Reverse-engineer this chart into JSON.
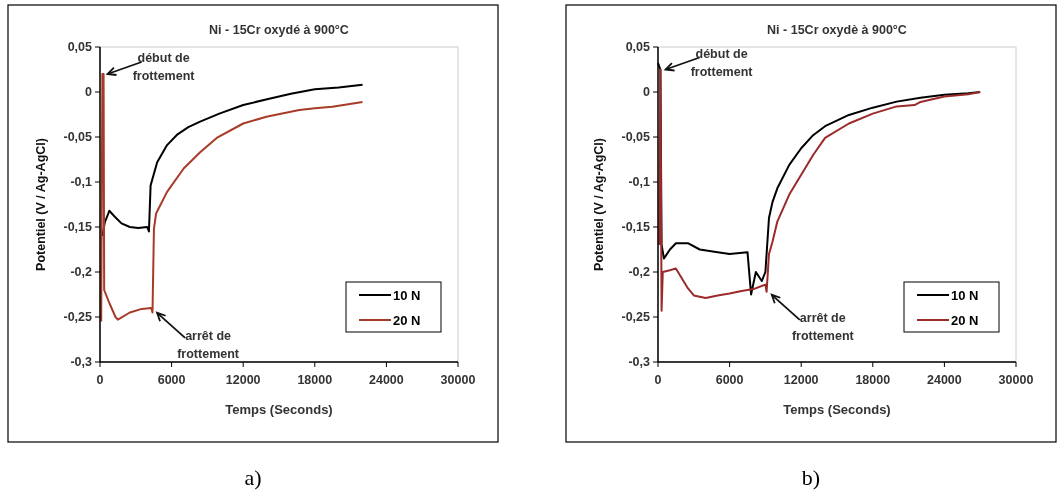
{
  "chart_data": [
    {
      "type": "line",
      "title": "Ni - 15Cr  oxydé à 900°C",
      "xlabel": "Temps (Seconds)",
      "ylabel": "Potentiel (V / Ag-AgCl)",
      "xlim": [
        0,
        30000
      ],
      "xticks": [
        0,
        6000,
        12000,
        18000,
        24000,
        30000
      ],
      "ylim": [
        -0.3,
        0.05
      ],
      "yticks": [
        {
          "value": -0.3,
          "label": "-0,3"
        },
        {
          "value": -0.25,
          "label": "-0,25"
        },
        {
          "value": -0.2,
          "label": "-0,2"
        },
        {
          "value": -0.15,
          "label": "-0,15"
        },
        {
          "value": -0.1,
          "label": "-0,1"
        },
        {
          "value": -0.05,
          "label": "-0,05"
        },
        0,
        {
          "value": 0.05,
          "label": "0,05"
        }
      ],
      "grid": false,
      "legend": "bottom right",
      "line_style": "solid",
      "marker": "none",
      "annotations": [
        {
          "text": "début de\nfrottement",
          "x": 300,
          "y": 0.02
        },
        {
          "text": "arrêt de\nfrottement",
          "x": 4450,
          "y": -0.242
        },
        "a)"
      ],
      "series": [
        {
          "name": "10 N",
          "color": "#000000",
          "x": [
            200,
            400,
            780,
            1200,
            1800,
            2500,
            3200,
            3960,
            4100,
            4240,
            4790,
            5620,
            6500,
            7400,
            8390,
            10000,
            12000,
            14000,
            16000,
            18000,
            20000,
            22000
          ],
          "values": [
            -0.16,
            -0.145,
            -0.132,
            -0.138,
            -0.146,
            -0.15,
            -0.151,
            -0.15,
            -0.155,
            -0.104,
            -0.078,
            -0.059,
            -0.047,
            -0.039,
            -0.033,
            -0.024,
            -0.0145,
            -0.008,
            -0.002,
            0.003,
            0.005,
            0.008
          ]
        },
        {
          "name": "20 N",
          "color": "#a83a28",
          "x": [
            100,
            200,
            300,
            350,
            800,
            1300,
            1500,
            2500,
            3500,
            4300,
            4400,
            4520,
            4700,
            5620,
            7010,
            8390,
            9780,
            12000,
            13940,
            16700,
            18000,
            19470,
            22000
          ],
          "values": [
            -0.255,
            0.02,
            0.02,
            -0.22,
            -0.235,
            -0.25,
            -0.253,
            -0.245,
            -0.241,
            -0.24,
            -0.245,
            -0.152,
            -0.135,
            -0.111,
            -0.085,
            -0.067,
            -0.051,
            -0.035,
            -0.0275,
            -0.02,
            -0.018,
            -0.0164,
            -0.011
          ]
        }
      ]
    },
    {
      "type": "line",
      "title": "Ni - 15Cr  oxydè à 900°C",
      "xlabel": "Temps (Seconds)",
      "ylabel": "Potentiel (V / Ag-AgCl)",
      "xlim": [
        0,
        30000
      ],
      "xticks": [
        0,
        6000,
        12000,
        18000,
        24000,
        30000
      ],
      "ylim": [
        -0.3,
        0.05
      ],
      "yticks": [
        {
          "value": -0.3,
          "label": "-0,3"
        },
        {
          "value": -0.25,
          "label": "-0,25"
        },
        {
          "value": -0.2,
          "label": "-0,2"
        },
        {
          "value": -0.15,
          "label": "-0,15"
        },
        {
          "value": -0.1,
          "label": "-0,1"
        },
        {
          "value": -0.05,
          "label": "-0,05"
        },
        0,
        {
          "value": 0.05,
          "label": "0,05"
        }
      ],
      "grid": false,
      "legend": "bottom right",
      "line_style": "solid",
      "marker": "none",
      "annotations": [
        {
          "text": "début de\nfrottement",
          "x": 300,
          "y": 0.025
        },
        {
          "text": "arrêt de\nfrottement",
          "x": 9200,
          "y": -0.222
        },
        "b)"
      ],
      "series": [
        {
          "name": "10 N",
          "color": "#000000",
          "x": [
            0,
            200,
            300,
            500,
            1000,
            1500,
            2500,
            3500,
            5000,
            6000,
            7500,
            7800,
            8200,
            8700,
            9000,
            9100,
            9300,
            9600,
            10000,
            11000,
            12000,
            13000,
            14000,
            16000,
            18000,
            20000,
            22000,
            24000,
            26000,
            27000
          ],
          "values": [
            0.032,
            0.025,
            -0.17,
            -0.185,
            -0.175,
            -0.168,
            -0.168,
            -0.175,
            -0.178,
            -0.18,
            -0.178,
            -0.225,
            -0.2,
            -0.21,
            -0.2,
            -0.18,
            -0.14,
            -0.122,
            -0.107,
            -0.081,
            -0.0625,
            -0.048,
            -0.038,
            -0.0255,
            -0.0174,
            -0.0107,
            -0.0063,
            -0.003,
            -0.0015,
            0
          ]
        },
        {
          "name": "20 N",
          "color": "#9b2a2a",
          "x": [
            100,
            200,
            300,
            400,
            1000,
            1500,
            2500,
            3000,
            4000,
            5000,
            6000,
            7000,
            8000,
            9000,
            9100,
            9300,
            9600,
            10000,
            11000,
            12000,
            13000,
            14000,
            16000,
            18000,
            20000,
            21500,
            22000,
            24000,
            26000,
            27000
          ],
          "values": [
            -0.17,
            0.025,
            -0.243,
            -0.2,
            -0.198,
            -0.196,
            -0.218,
            -0.226,
            -0.229,
            -0.226,
            -0.224,
            -0.221,
            -0.219,
            -0.214,
            -0.222,
            -0.18,
            -0.166,
            -0.144,
            -0.114,
            -0.092,
            -0.07,
            -0.051,
            -0.035,
            -0.024,
            -0.016,
            -0.0145,
            -0.011,
            -0.005,
            -0.0026,
            0
          ]
        }
      ]
    }
  ]
}
